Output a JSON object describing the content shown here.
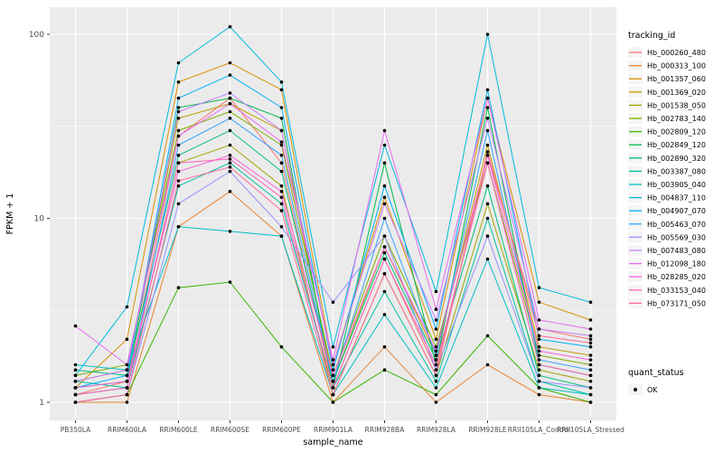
{
  "chart_data": {
    "type": "line",
    "title": "",
    "xlabel": "sample_name",
    "ylabel": "FPKM + 1",
    "y_scale": "log10",
    "y_ticks": [
      1,
      10,
      100
    ],
    "ylim": [
      1,
      130
    ],
    "panel_bg": "#EBEBEB",
    "grid_color": "#FFFFFF",
    "tick_text_color": "#4D4D4D",
    "axis_title_color": "#000000",
    "point_color": "#000000",
    "categories": [
      "PB350LA",
      "RRIM600LA",
      "RRIM600LE",
      "RRIM600SE",
      "RRIM600PE",
      "RRIM901LA",
      "RRIM928BA",
      "RRIM928LA",
      "RRIM928LE",
      "RRII105LA_Control",
      "RRII105LA_Stressed"
    ],
    "legend_title": "tracking_id",
    "quant_legend": {
      "title": "quant_status",
      "items": [
        {
          "label": "OK"
        }
      ]
    },
    "series": [
      {
        "name": "Hb_000260_480",
        "color": "#F8766D",
        "values": [
          1.1,
          1.3,
          28,
          45,
          20,
          1.2,
          6,
          1.5,
          22,
          2.5,
          2.2
        ]
      },
      {
        "name": "Hb_000313_100",
        "color": "#EA8331",
        "values": [
          1.0,
          1.0,
          9,
          14,
          8,
          1.0,
          2.0,
          1.0,
          1.6,
          1.1,
          1.0
        ]
      },
      {
        "name": "Hb_001357_060",
        "color": "#D89000",
        "values": [
          1.2,
          2.2,
          55,
          70,
          50,
          1.6,
          13,
          2.2,
          45,
          3.5,
          2.8
        ]
      },
      {
        "name": "Hb_001369_020",
        "color": "#C09B00",
        "values": [
          1.3,
          1.5,
          35,
          42,
          30,
          1.3,
          7,
          1.8,
          25,
          2.0,
          1.8
        ]
      },
      {
        "name": "Hb_001538_050",
        "color": "#A3A500",
        "values": [
          1.1,
          1.2,
          20,
          25,
          15,
          1.1,
          5,
          1.4,
          12,
          1.5,
          1.3
        ]
      },
      {
        "name": "Hb_002783_140",
        "color": "#7CAE00",
        "values": [
          1.4,
          1.6,
          30,
          38,
          25,
          1.4,
          8,
          2.0,
          20,
          1.8,
          1.6
        ]
      },
      {
        "name": "Hb_002809_120",
        "color": "#39B600",
        "values": [
          1.0,
          1.1,
          4.2,
          4.5,
          2.0,
          1.0,
          1.5,
          1.1,
          2.3,
          1.2,
          1.0
        ]
      },
      {
        "name": "Hb_002849_120",
        "color": "#00BB4E",
        "values": [
          1.2,
          1.3,
          40,
          45,
          35,
          1.2,
          20,
          1.6,
          40,
          1.6,
          1.4
        ]
      },
      {
        "name": "Hb_002890_320",
        "color": "#00BF7D",
        "values": [
          1.5,
          1.4,
          22,
          30,
          18,
          1.3,
          6.5,
          1.7,
          15,
          1.4,
          1.2
        ]
      },
      {
        "name": "Hb_003387_080",
        "color": "#00C1A3",
        "values": [
          1.3,
          1.2,
          15,
          20,
          12,
          1.2,
          4,
          1.3,
          10,
          1.3,
          1.1
        ]
      },
      {
        "name": "Hb_003905_040",
        "color": "#00BFC4",
        "values": [
          1.6,
          1.5,
          9,
          8.5,
          8,
          1.1,
          3,
          1.2,
          6,
          1.2,
          1.1
        ]
      },
      {
        "name": "Hb_004837_110",
        "color": "#00BAE0",
        "values": [
          1.4,
          3.3,
          70,
          110,
          55,
          2.0,
          25,
          4.0,
          100,
          4.2,
          3.5
        ]
      },
      {
        "name": "Hb_004907_070",
        "color": "#00B0F6",
        "values": [
          1.2,
          1.4,
          45,
          60,
          40,
          1.5,
          15,
          2.5,
          50,
          2.2,
          2.0
        ]
      },
      {
        "name": "Hb_005463_070",
        "color": "#35A2FF",
        "values": [
          1.1,
          1.2,
          25,
          35,
          22,
          1.3,
          10,
          1.8,
          30,
          1.7,
          1.5
        ]
      },
      {
        "name": "Hb_005569_030",
        "color": "#9590FF",
        "values": [
          1.0,
          1.1,
          12,
          18,
          9,
          3.5,
          8,
          1.5,
          8,
          1.3,
          1.2
        ]
      },
      {
        "name": "Hb_007483_080",
        "color": "#C77CFF",
        "values": [
          1.3,
          1.5,
          38,
          48,
          30,
          1.6,
          12,
          2.8,
          35,
          2.5,
          2.3
        ]
      },
      {
        "name": "Hb_012098_180",
        "color": "#E76BF3",
        "values": [
          2.6,
          1.6,
          28,
          42,
          26,
          1.7,
          30,
          3.2,
          45,
          2.8,
          2.5
        ]
      },
      {
        "name": "Hb_028285_020",
        "color": "#FA62DB",
        "values": [
          1.2,
          1.3,
          18,
          22,
          14,
          1.4,
          7,
          1.9,
          22,
          1.9,
          1.7
        ]
      },
      {
        "name": "Hb_033153_040",
        "color": "#FF62BC",
        "values": [
          1.1,
          1.2,
          20,
          21,
          13,
          1.2,
          6,
          1.6,
          20,
          1.6,
          1.4
        ]
      },
      {
        "name": "Hb_073171_050",
        "color": "#FF6A98",
        "values": [
          1.0,
          1.1,
          16,
          19,
          11,
          1.1,
          5,
          1.4,
          23,
          2.3,
          2.1
        ]
      }
    ]
  }
}
